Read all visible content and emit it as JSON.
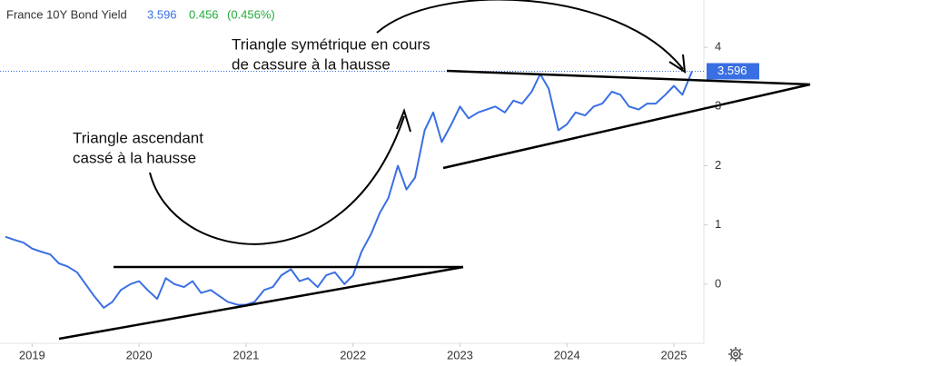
{
  "chart_data": {
    "type": "line",
    "title": "France 10Y Bond Yield",
    "change": 0.456,
    "change_percent": "(0.456%)",
    "annotations": [
      [
        "Triangle symétrique en cours",
        "de cassure à la hausse"
      ],
      [
        "Triangle ascendant",
        "cassé à la hausse"
      ]
    ],
    "x": [
      2018.75,
      2018.83,
      2018.92,
      2019.0,
      2019.08,
      2019.17,
      2019.25,
      2019.33,
      2019.42,
      2019.5,
      2019.58,
      2019.67,
      2019.75,
      2019.83,
      2019.92,
      2020.0,
      2020.08,
      2020.17,
      2020.25,
      2020.33,
      2020.42,
      2020.5,
      2020.58,
      2020.67,
      2020.75,
      2020.83,
      2020.92,
      2021.0,
      2021.08,
      2021.17,
      2021.25,
      2021.33,
      2021.42,
      2021.5,
      2021.58,
      2021.67,
      2021.75,
      2021.83,
      2021.92,
      2022.0,
      2022.08,
      2022.17,
      2022.25,
      2022.33,
      2022.42,
      2022.5,
      2022.58,
      2022.67,
      2022.75,
      2022.83,
      2022.92,
      2023.0,
      2023.08,
      2023.17,
      2023.25,
      2023.33,
      2023.42,
      2023.5,
      2023.58,
      2023.67,
      2023.75,
      2023.83,
      2023.92,
      2024.0,
      2024.08,
      2024.17,
      2024.25,
      2024.33,
      2024.42,
      2024.5,
      2024.58,
      2024.67,
      2024.75,
      2024.83,
      2024.92,
      2025.0,
      2025.08,
      2025.17
    ],
    "series": [
      {
        "name": "France 10Y Bond Yield",
        "color": "#3a6fe3",
        "values": [
          0.8,
          0.75,
          0.7,
          0.6,
          0.55,
          0.5,
          0.35,
          0.3,
          0.2,
          0.0,
          -0.2,
          -0.4,
          -0.3,
          -0.1,
          0.0,
          0.05,
          -0.1,
          -0.25,
          0.1,
          0.0,
          -0.05,
          0.05,
          -0.15,
          -0.1,
          -0.2,
          -0.3,
          -0.35,
          -0.35,
          -0.3,
          -0.1,
          -0.05,
          0.15,
          0.25,
          0.05,
          0.1,
          -0.05,
          0.15,
          0.2,
          0.0,
          0.15,
          0.55,
          0.85,
          1.2,
          1.45,
          2.0,
          1.6,
          1.8,
          2.6,
          2.9,
          2.4,
          2.7,
          3.0,
          2.8,
          2.9,
          2.95,
          3.0,
          2.9,
          3.1,
          3.05,
          3.25,
          3.55,
          3.3,
          2.6,
          2.7,
          2.9,
          2.85,
          3.0,
          3.05,
          3.25,
          3.2,
          3.0,
          2.95,
          3.05,
          3.05,
          3.2,
          3.35,
          3.2,
          3.596
        ]
      }
    ],
    "xlim": [
      2018.7,
      2025.28
    ],
    "xticks": [
      2019,
      2020,
      2021,
      2022,
      2023,
      2024,
      2025
    ],
    "ylim": [
      -1.0,
      4.8
    ],
    "yticks": [
      0,
      1,
      2,
      3,
      4
    ],
    "grid": false
  }
}
